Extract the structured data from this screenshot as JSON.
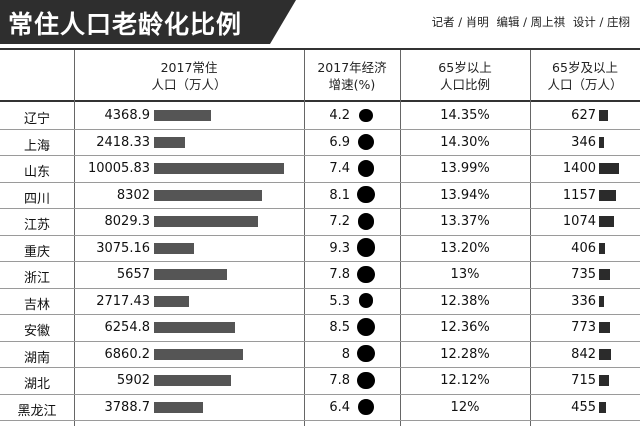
{
  "banner": {
    "title": "常住人口老龄化比例",
    "credits": [
      "记者 / 肖明",
      "编辑 / 周上祺",
      "设计 / 庄栩"
    ]
  },
  "headers": {
    "population": [
      "2017常住",
      "人口（万人）"
    ],
    "growth": [
      "2017年经济",
      "增速(%)"
    ],
    "ratio": [
      "65岁以上",
      "人口比例"
    ],
    "elderly": [
      "65岁及以上",
      "人口（万人）"
    ]
  },
  "colors": {
    "banner_bg": "#2e2e2e",
    "bar": "#555555",
    "dot": "#000000"
  },
  "chart_data": {
    "type": "table",
    "title": "常住人口老龄化比例",
    "columns": [
      "",
      "2017常住人口（万人）",
      "2017年经济增速(%)",
      "65岁以上人口比例",
      "65岁及以上人口（万人）"
    ],
    "rows": [
      {
        "province": "辽宁",
        "population": "4368.9",
        "growth": "4.2",
        "ratio": "14.35%",
        "elderly": "627"
      },
      {
        "province": "上海",
        "population": "2418.33",
        "growth": "6.9",
        "ratio": "14.30%",
        "elderly": "346"
      },
      {
        "province": "山东",
        "population": "10005.83",
        "growth": "7.4",
        "ratio": "13.99%",
        "elderly": "1400"
      },
      {
        "province": "四川",
        "population": "8302",
        "growth": "8.1",
        "ratio": "13.94%",
        "elderly": "1157"
      },
      {
        "province": "江苏",
        "population": "8029.3",
        "growth": "7.2",
        "ratio": "13.37%",
        "elderly": "1074"
      },
      {
        "province": "重庆",
        "population": "3075.16",
        "growth": "9.3",
        "ratio": "13.20%",
        "elderly": "406"
      },
      {
        "province": "浙江",
        "population": "5657",
        "growth": "7.8",
        "ratio": "13%",
        "elderly": "735"
      },
      {
        "province": "吉林",
        "population": "2717.43",
        "growth": "5.3",
        "ratio": "12.38%",
        "elderly": "336"
      },
      {
        "province": "安徽",
        "population": "6254.8",
        "growth": "8.5",
        "ratio": "12.36%",
        "elderly": "773"
      },
      {
        "province": "湖南",
        "population": "6860.2",
        "growth": "8",
        "ratio": "12.28%",
        "elderly": "842"
      },
      {
        "province": "湖北",
        "population": "5902",
        "growth": "7.8",
        "ratio": "12.12%",
        "elderly": "715"
      },
      {
        "province": "黑龙江",
        "population": "3788.7",
        "growth": "6.4",
        "ratio": "12%",
        "elderly": "455"
      }
    ]
  }
}
